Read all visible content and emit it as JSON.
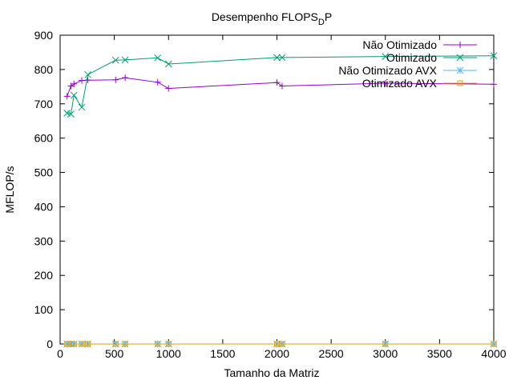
{
  "chart_data": {
    "type": "line",
    "title_main": "Desempenho FLOPS",
    "title_sub": "D",
    "title_tail": "P",
    "xlabel": "Tamanho da Matriz",
    "ylabel": "MFLOP/s",
    "xlim": [
      0,
      4000
    ],
    "ylim": [
      0,
      900
    ],
    "xticks": [
      0,
      500,
      1000,
      1500,
      2000,
      2500,
      3000,
      3500,
      4000
    ],
    "yticks": [
      0,
      100,
      200,
      300,
      400,
      500,
      600,
      700,
      800,
      900
    ],
    "legend_position": "top-right",
    "x": [
      64,
      100,
      128,
      200,
      256,
      512,
      600,
      900,
      1000,
      2000,
      2048,
      3000,
      4000
    ],
    "series": [
      {
        "name": "Não Otimizado",
        "color": "#9400d3",
        "marker": "plus",
        "values": [
          722,
          752,
          758,
          768,
          769,
          770,
          776,
          763,
          745,
          762,
          752,
          760,
          757
        ]
      },
      {
        "name": "Otimizado",
        "color": "#009e73",
        "marker": "cross",
        "values": [
          673,
          670,
          725,
          690,
          785,
          827,
          828,
          834,
          816,
          835,
          835,
          838,
          840
        ]
      },
      {
        "name": "Não Otimizado AVX",
        "color": "#56b4e9",
        "marker": "star",
        "values": [
          0,
          0,
          0,
          0,
          0,
          0,
          0,
          0,
          0,
          0,
          0,
          0,
          0
        ]
      },
      {
        "name": "Otimizado AVX",
        "color": "#e69f00",
        "marker": "square",
        "values": [
          0,
          0,
          0,
          0,
          0,
          0,
          0,
          0,
          0,
          0,
          0,
          0,
          0
        ]
      }
    ]
  }
}
